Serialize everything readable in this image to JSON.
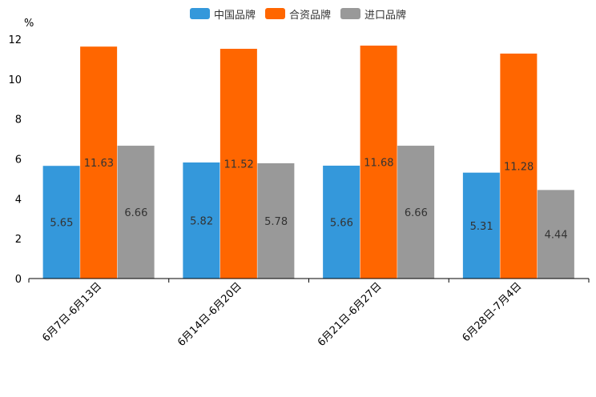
{
  "chart_data": {
    "type": "bar",
    "ylabel": "%",
    "ylim": [
      0,
      12
    ],
    "yticks": [
      "0",
      "2",
      "4",
      "6",
      "8",
      "10",
      "12"
    ],
    "categories": [
      "6月7日-6月13日",
      "6月14日-6月20日",
      "6月21日-6月27日",
      "6月28日-7月4日"
    ],
    "series": [
      {
        "name": "中国品牌",
        "color": "#3498db",
        "values": [
          5.65,
          5.82,
          5.66,
          5.31
        ],
        "labels": [
          "5.65",
          "5.82",
          "5.66",
          "5.31"
        ]
      },
      {
        "name": "合资品牌",
        "color": "#ff6600",
        "values": [
          11.63,
          11.52,
          11.68,
          11.28
        ],
        "labels": [
          "11.63",
          "11.52",
          "11.68",
          "11.28"
        ]
      },
      {
        "name": "进口品牌",
        "color": "#999999",
        "values": [
          6.66,
          5.78,
          6.66,
          4.44
        ],
        "labels": [
          "6.66",
          "5.78",
          "6.66",
          "4.44"
        ]
      }
    ],
    "legend_position": "top-center",
    "grid": false
  }
}
